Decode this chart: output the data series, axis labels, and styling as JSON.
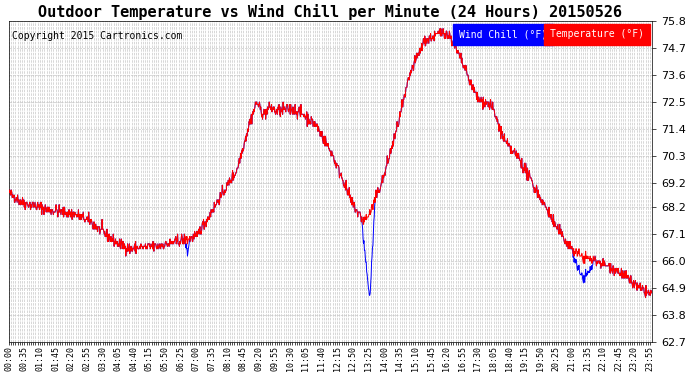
{
  "title": "Outdoor Temperature vs Wind Chill per Minute (24 Hours) 20150526",
  "copyright": "Copyright 2015 Cartronics.com",
  "ylim": [
    62.7,
    75.8
  ],
  "yticks": [
    62.7,
    63.8,
    64.9,
    66.0,
    67.1,
    68.2,
    69.2,
    70.3,
    71.4,
    72.5,
    73.6,
    74.7,
    75.8
  ],
  "legend_wind_chill": "Wind Chill (°F)",
  "legend_temperature": "Temperature (°F)",
  "wind_chill_color": "#0000ff",
  "temperature_color": "#ff0000",
  "background_color": "#ffffff",
  "grid_color": "#c8c8c8",
  "title_fontsize": 11,
  "copyright_fontsize": 7,
  "num_minutes": 1440,
  "x_label_interval_min": 35
}
